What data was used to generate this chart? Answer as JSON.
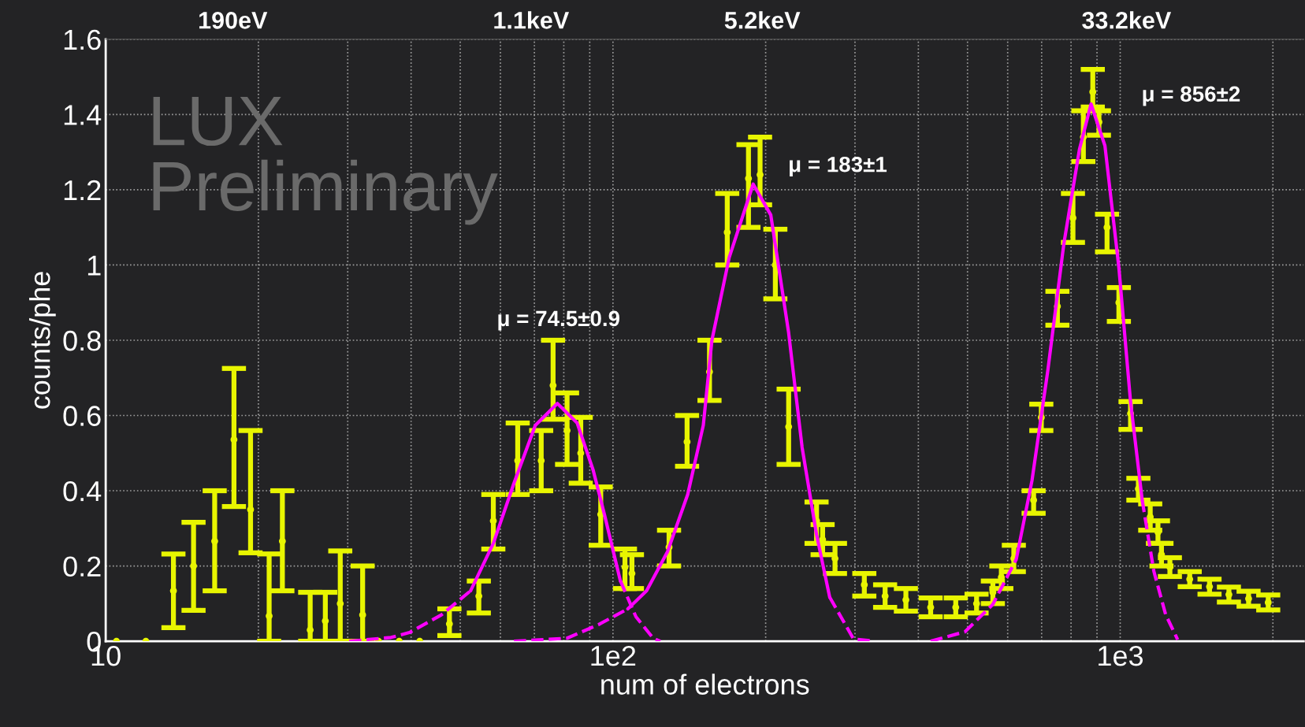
{
  "chart_data": {
    "type": "scatter",
    "xlabel": "num of electrons",
    "ylabel": "counts/phe",
    "log": "x",
    "grid": true,
    "marker": "circle",
    "xlim": [
      10,
      2300
    ],
    "ylim": [
      0,
      1.6
    ],
    "xticks": [
      {
        "value": 10,
        "label": "10"
      },
      {
        "value": 20,
        "label": null
      },
      {
        "value": 30,
        "label": null
      },
      {
        "value": 40,
        "label": null
      },
      {
        "value": 50,
        "label": null
      },
      {
        "value": 60,
        "label": null
      },
      {
        "value": 70,
        "label": null
      },
      {
        "value": 80,
        "label": null
      },
      {
        "value": 90,
        "label": null
      },
      {
        "value": 100,
        "label": "1e2"
      },
      {
        "value": 200,
        "label": null
      },
      {
        "value": 300,
        "label": null
      },
      {
        "value": 400,
        "label": null
      },
      {
        "value": 500,
        "label": null
      },
      {
        "value": 600,
        "label": null
      },
      {
        "value": 700,
        "label": null
      },
      {
        "value": 800,
        "label": null
      },
      {
        "value": 900,
        "label": null
      },
      {
        "value": 1000,
        "label": "1e3"
      },
      {
        "value": 2000,
        "label": null
      }
    ],
    "yticks": [
      0,
      0.2,
      0.4,
      0.6,
      0.8,
      1,
      1.2,
      1.4,
      1.6
    ],
    "annotations": [
      "μ = 74.5±0.9",
      "μ = 183±1",
      "μ = 856±2",
      "LUX\nPreliminary",
      "190eV",
      "1.1keV",
      "5.2keV",
      "33.2keV"
    ],
    "series": [
      {
        "color": "#e8f500",
        "x": [
          10.5,
          12.0,
          13.6,
          14.9,
          16.4,
          17.9,
          19.3,
          21.0,
          22.3,
          25.3,
          27.1,
          29.0,
          32.1,
          34.5,
          37.9,
          41.6,
          47.6,
          54.4,
          58.1,
          64.9,
          72.2,
          76.2,
          81.2,
          86.4,
          94.6,
          105.6,
          109,
          129,
          140,
          155,
          168,
          185,
          195,
          209,
          222,
          252,
          259,
          274,
          313,
          344,
          378,
          423,
          474,
          521,
          561,
          583,
          617,
          675,
          699,
          752,
          807,
          846,
          883,
          908,
          942,
          994,
          1048,
          1086,
          1146,
          1187,
          1206,
          1253,
          1371,
          1500,
          1638,
          1791,
          1958
        ],
        "values": [
          0,
          0,
          0.134,
          0.2,
          0.266,
          0.536,
          0.35,
          0.067,
          0.266,
          0.03,
          0.054,
          0.1,
          0.07,
          0,
          0,
          0,
          0.046,
          0.12,
          0.32,
          0.48,
          0.48,
          0.68,
          0.56,
          0.5,
          0.337,
          0.197,
          0.18,
          0.25,
          0.53,
          0.716,
          1.087,
          1.23,
          1.24,
          1.0,
          0.57,
          0.32,
          0.27,
          0.22,
          0.15,
          0.12,
          0.11,
          0.09,
          0.09,
          0.1,
          0.13,
          0.17,
          0.22,
          0.375,
          0.595,
          0.89,
          1.125,
          1.34,
          1.46,
          1.38,
          1.1,
          0.9,
          0.605,
          0.405,
          0.33,
          0.29,
          0.23,
          0.197,
          0.165,
          0.145,
          0.124,
          0.113,
          0.103
        ],
        "errors": [
          null,
          null,
          [
            0.036,
            0.232
          ],
          [
            0.082,
            0.316
          ],
          [
            0.134,
            0.4
          ],
          [
            0.358,
            0.725
          ],
          [
            0.235,
            0.56
          ],
          [
            0,
            0.232
          ],
          [
            0.134,
            0.4
          ],
          [
            0,
            0.13
          ],
          [
            0,
            0.13
          ],
          [
            0,
            0.24
          ],
          [
            0,
            0.2
          ],
          null,
          null,
          null,
          [
            0.015,
            0.086
          ],
          [
            0.075,
            0.16
          ],
          [
            0.245,
            0.39
          ],
          [
            0.39,
            0.58
          ],
          [
            0.4,
            0.56
          ],
          [
            0.59,
            0.8
          ],
          [
            0.47,
            0.66
          ],
          [
            0.42,
            0.595
          ],
          [
            0.255,
            0.41
          ],
          [
            0.14,
            0.245
          ],
          [
            0.14,
            0.23
          ],
          [
            0.2,
            0.295
          ],
          [
            0.465,
            0.6
          ],
          [
            0.64,
            0.8
          ],
          [
            1.0,
            1.19
          ],
          [
            1.1,
            1.32
          ],
          [
            1.16,
            1.34
          ],
          [
            0.91,
            1.095
          ],
          [
            0.47,
            0.67
          ],
          [
            0.26,
            0.37
          ],
          0.04,
          0.04,
          0.03,
          0.03,
          0.03,
          0.025,
          0.025,
          0.025,
          0.03,
          0.03,
          0.035,
          [
            0.34,
            0.4
          ],
          [
            0.56,
            0.63
          ],
          [
            0.84,
            0.93
          ],
          [
            1.06,
            1.19
          ],
          [
            1.275,
            1.41
          ],
          [
            1.42,
            1.52
          ],
          [
            1.345,
            1.41
          ],
          [
            1.035,
            1.135
          ],
          [
            0.85,
            0.94
          ],
          [
            0.563,
            0.637
          ],
          [
            0.375,
            0.433
          ],
          0.035,
          0.03,
          0.03,
          0.025,
          0.02,
          0.02,
          0.02,
          0.02,
          0.02
        ]
      },
      {
        "type": "line",
        "color": "#ff00ff",
        "line_style": "dashed",
        "marker": "none",
        "x": [
          30.2,
          36.5,
          39.7,
          45.9,
          52.4
        ],
        "values": [
          0,
          0.01,
          0.023,
          0.07,
          0.134
        ]
      },
      {
        "type": "line",
        "color": "#ff00ff",
        "line_style": "solid",
        "marker": "none",
        "x": [
          52.4,
          58.1,
          63.8,
          70.3,
          77.7,
          85.0,
          91.4,
          96.2,
          103.4
        ],
        "values": [
          0.134,
          0.26,
          0.42,
          0.574,
          0.632,
          0.58,
          0.455,
          0.337,
          0.161
        ]
      },
      {
        "type": "line",
        "color": "#ff00ff",
        "line_style": "dashed",
        "marker": "none",
        "x": [
          103.4,
          111,
          120,
          124
        ],
        "values": [
          0.161,
          0.065,
          0.008,
          0
        ]
      },
      {
        "type": "line",
        "color": "#ff00ff",
        "line_style": "dashed",
        "marker": "none",
        "x": [
          63.8,
          81.2,
          93.6,
          107
        ],
        "values": [
          0,
          0.008,
          0.044,
          0.086
        ]
      },
      {
        "type": "line",
        "color": "#ff00ff",
        "line_style": "solid",
        "marker": "none",
        "x": [
          107,
          116.5,
          128.2,
          140.4,
          150.7,
          156.7,
          169.5,
          189,
          204.7,
          222,
          236,
          252,
          267.5
        ],
        "values": [
          0.086,
          0.134,
          0.239,
          0.39,
          0.574,
          0.8,
          1.02,
          1.215,
          1.133,
          0.82,
          0.515,
          0.283,
          0.117
        ]
      },
      {
        "type": "line",
        "color": "#ff00ff",
        "line_style": "dashed",
        "marker": "none",
        "x": [
          267.5,
          298,
          328
        ],
        "values": [
          0.117,
          0.006,
          0
        ]
      },
      {
        "type": "line",
        "color": "#ff00ff",
        "line_style": "dashed",
        "marker": "none",
        "x": [
          423,
          494,
          561,
          624
        ],
        "values": [
          0,
          0.025,
          0.098,
          0.218
        ]
      },
      {
        "type": "line",
        "color": "#ff00ff",
        "line_style": "solid",
        "marker": "none",
        "x": [
          624,
          670,
          720,
          774,
          831,
          876,
          933,
          994,
          1048,
          1105
        ],
        "values": [
          0.218,
          0.427,
          0.72,
          1.055,
          1.307,
          1.428,
          1.317,
          0.993,
          0.637,
          0.375
        ]
      },
      {
        "type": "line",
        "color": "#ff00ff",
        "line_style": "dashed",
        "marker": "none",
        "x": [
          1105,
          1165,
          1229,
          1298
        ],
        "values": [
          0.375,
          0.186,
          0.071,
          0.004
        ]
      }
    ]
  }
}
